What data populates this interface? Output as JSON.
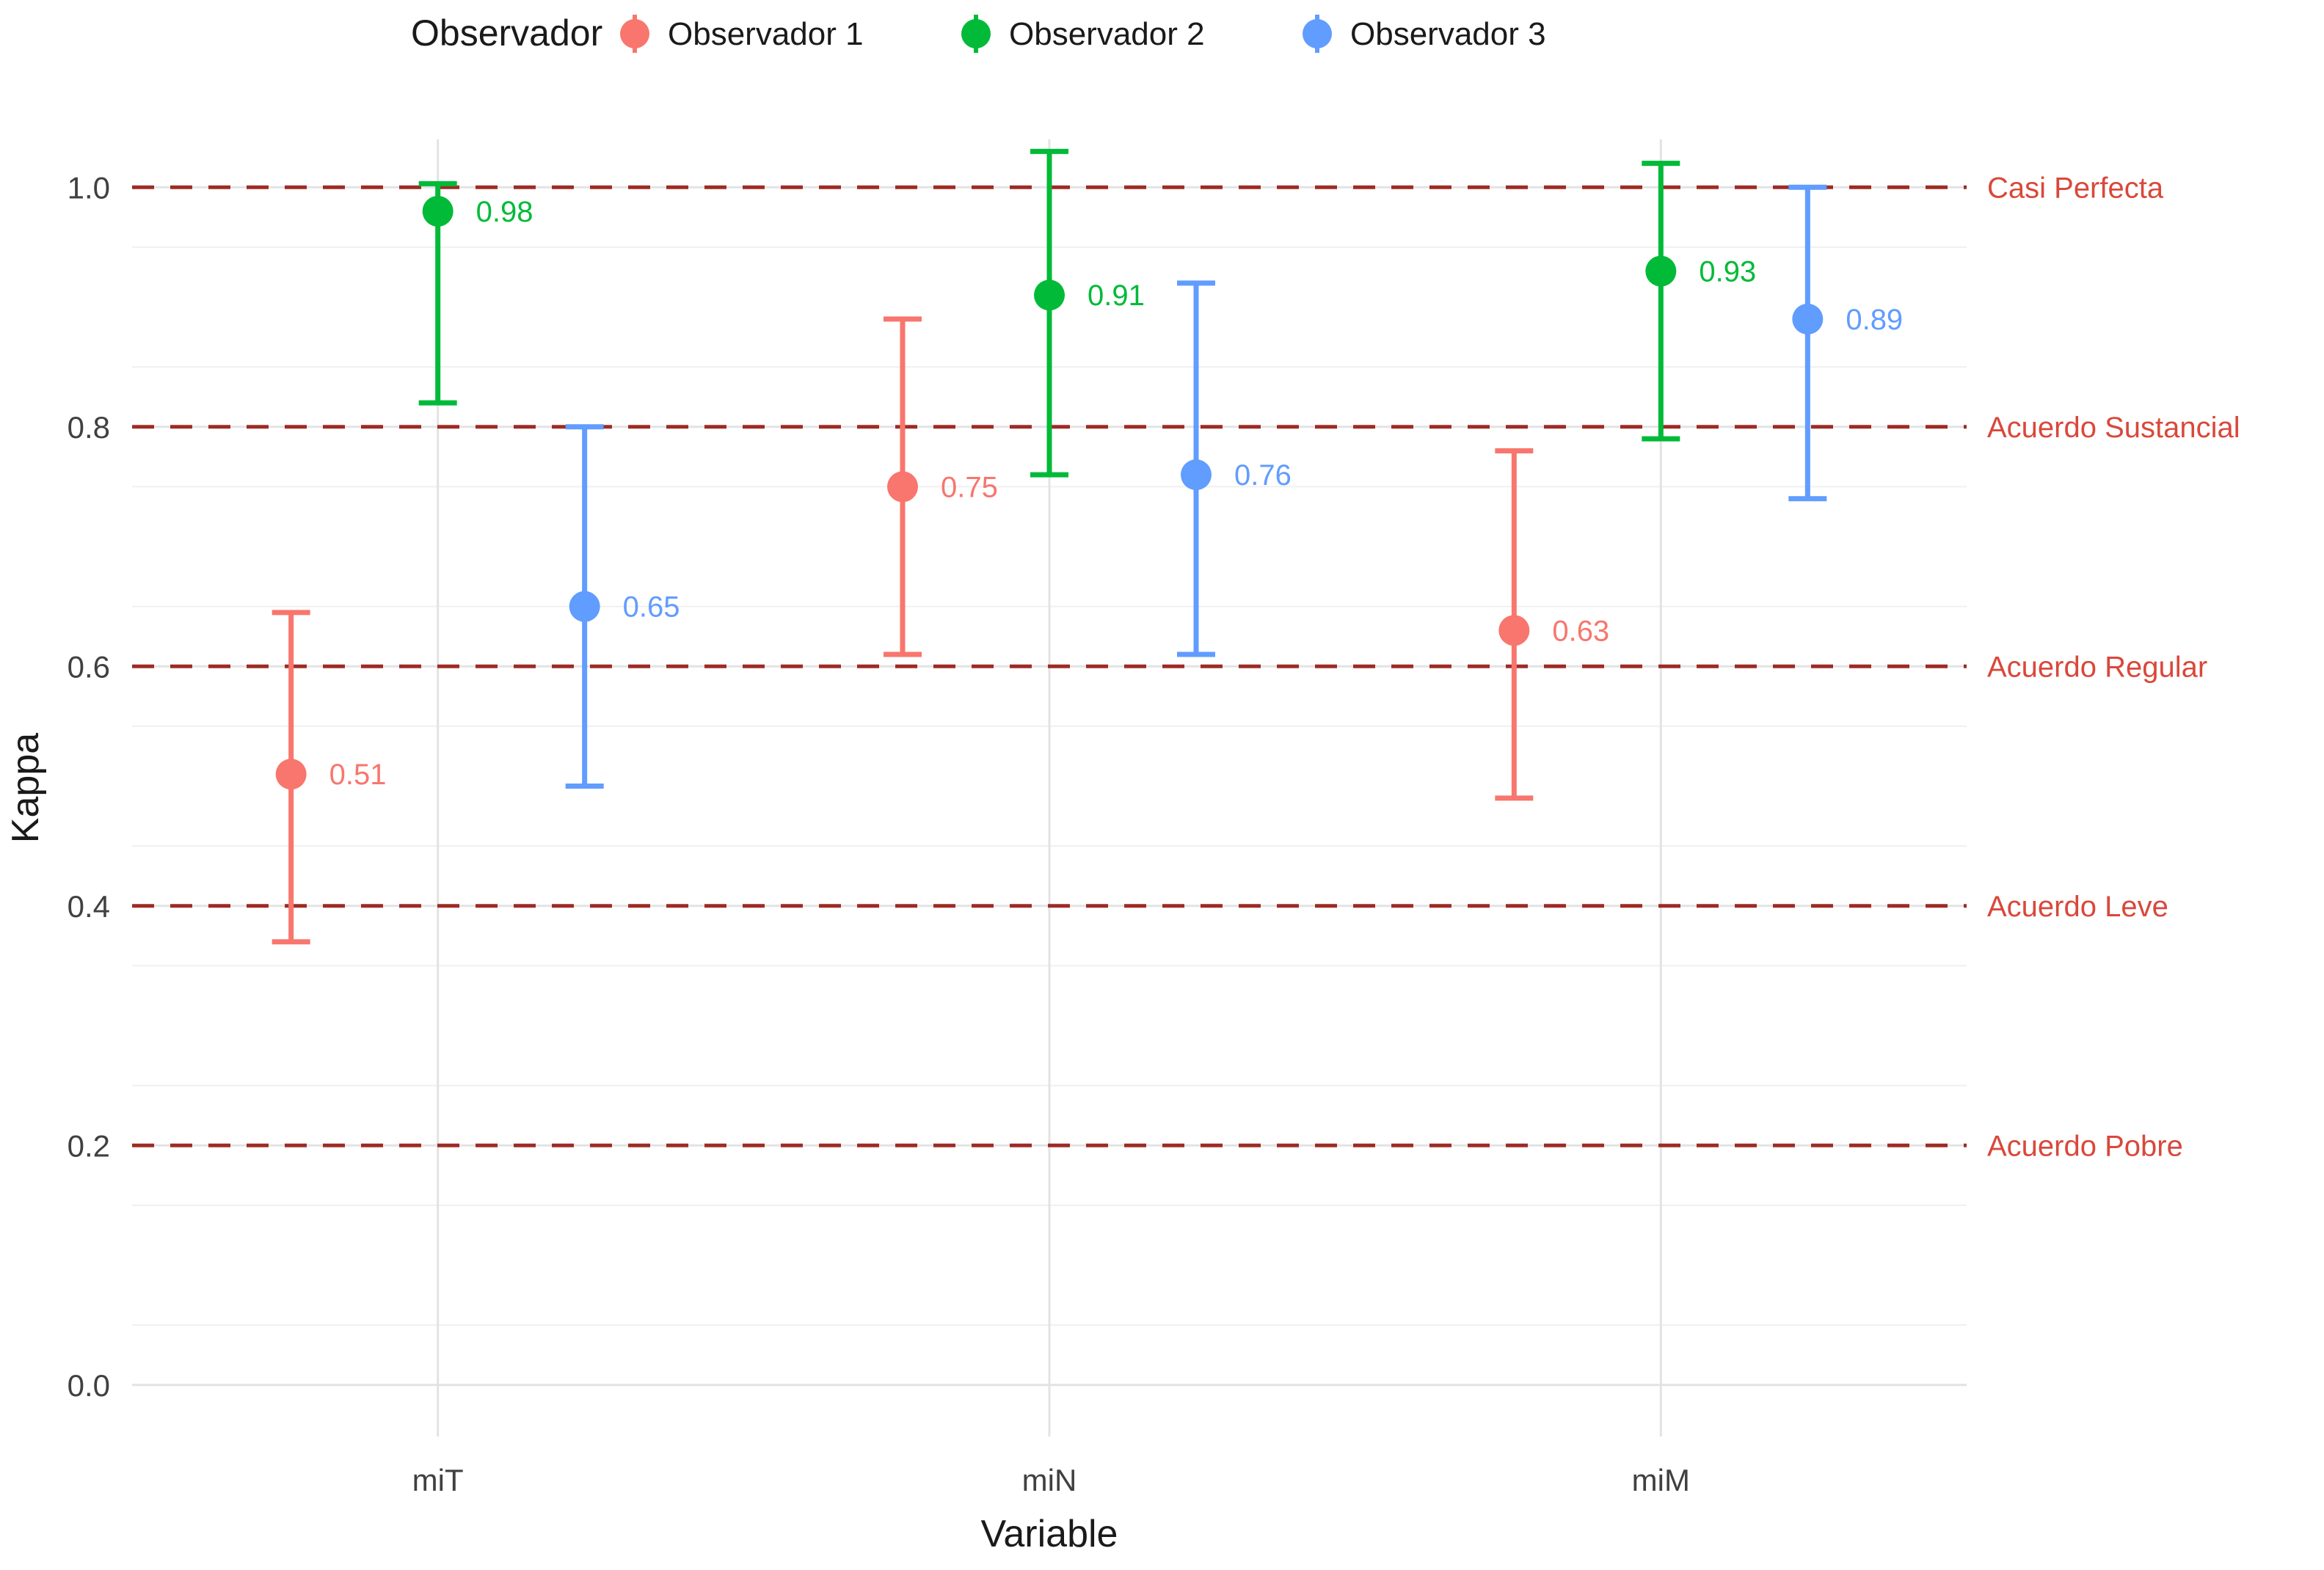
{
  "chart_data": {
    "type": "pointrange",
    "title": "",
    "xlabel": "Variable",
    "ylabel": "Kappa",
    "categories": [
      "miT",
      "miN",
      "miM"
    ],
    "yticks": [
      "0.0",
      "0.2",
      "0.4",
      "0.6",
      "0.8",
      "1.0"
    ],
    "ytick_values": [
      0.0,
      0.2,
      0.4,
      0.6,
      0.8,
      1.0
    ],
    "ylim": [
      -0.04,
      1.04
    ],
    "grid": true,
    "legend": {
      "title": "Observador",
      "position": "top",
      "items": [
        "Observador 1",
        "Observador 2",
        "Observador 3"
      ]
    },
    "series": [
      {
        "name": "Observador 1",
        "color": "#F8766D",
        "values": [
          {
            "x": "miT",
            "y": 0.51,
            "low": 0.37,
            "high": 0.645,
            "label": "0.51"
          },
          {
            "x": "miN",
            "y": 0.75,
            "low": 0.61,
            "high": 0.89,
            "label": "0.75"
          },
          {
            "x": "miM",
            "y": 0.63,
            "low": 0.49,
            "high": 0.78,
            "label": "0.63"
          }
        ]
      },
      {
        "name": "Observador 2",
        "color": "#00BA38",
        "values": [
          {
            "x": "miT",
            "y": 0.98,
            "low": 0.82,
            "high": 1.003,
            "label": "0.98"
          },
          {
            "x": "miN",
            "y": 0.91,
            "low": 0.76,
            "high": 1.03,
            "label": "0.91"
          },
          {
            "x": "miM",
            "y": 0.93,
            "low": 0.79,
            "high": 1.02,
            "label": "0.93"
          }
        ]
      },
      {
        "name": "Observador 3",
        "color": "#619CFF",
        "values": [
          {
            "x": "miT",
            "y": 0.65,
            "low": 0.5,
            "high": 0.8,
            "label": "0.65"
          },
          {
            "x": "miN",
            "y": 0.76,
            "low": 0.61,
            "high": 0.92,
            "label": "0.76"
          },
          {
            "x": "miM",
            "y": 0.89,
            "low": 0.74,
            "high": 1.0,
            "label": "0.89"
          }
        ]
      }
    ],
    "reference_lines": [
      {
        "y": 1.0,
        "label": "Casi Perfecta"
      },
      {
        "y": 0.8,
        "label": "Acuerdo Sustancial"
      },
      {
        "y": 0.6,
        "label": "Acuerdo Regular"
      },
      {
        "y": 0.4,
        "label": "Acuerdo Leve"
      },
      {
        "y": 0.2,
        "label": "Acuerdo Pobre"
      }
    ],
    "reference_line_color": "#9E2B25",
    "reference_label_color": "#D9483B",
    "axis_text_color": "#404040",
    "grid_major_color": "#e3e3e3",
    "grid_minor_color": "#f0f0f0"
  }
}
